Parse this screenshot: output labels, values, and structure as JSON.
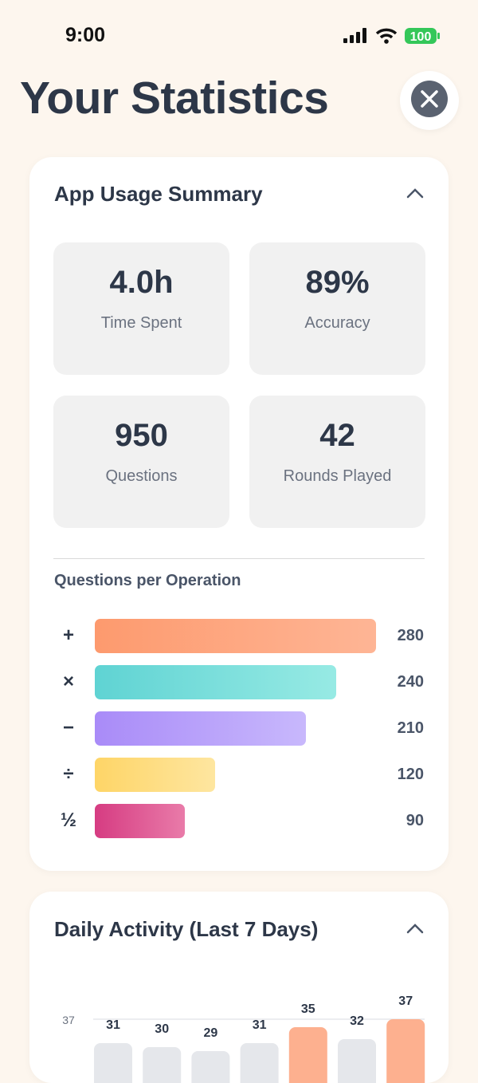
{
  "status_bar": {
    "time": "9:00",
    "battery": "100"
  },
  "header": {
    "title": "Your Statistics"
  },
  "summary": {
    "title": "App Usage Summary",
    "stats": [
      {
        "value": "4.0h",
        "label": "Time Spent"
      },
      {
        "value": "89%",
        "label": "Accuracy"
      },
      {
        "value": "950",
        "label": "Questions"
      },
      {
        "value": "42",
        "label": "Rounds Played"
      }
    ]
  },
  "operations": {
    "type": "bar",
    "title": "Questions per Operation",
    "categories": [
      "+",
      "×",
      "−",
      "÷",
      "½"
    ],
    "values": [
      280,
      240,
      210,
      120,
      90
    ],
    "colors": [
      [
        "#fd9a6e",
        "#feb595"
      ],
      [
        "#5fd3d3",
        "#97eae4"
      ],
      [
        "#a98bf8",
        "#c8b8fc"
      ],
      [
        "#fed567",
        "#fee6a0"
      ],
      [
        "#d63c82",
        "#e97ba9"
      ]
    ]
  },
  "daily": {
    "type": "bar",
    "title": "Daily Activity (Last 7 Days)",
    "values": [
      31,
      30,
      29,
      31,
      35,
      32,
      37
    ],
    "yticks": [
      37
    ],
    "colors": [
      "#e5e7eb",
      "#e5e7eb",
      "#e5e7eb",
      "#e5e7eb",
      "#fdb08f",
      "#e5e7eb",
      "#fdb08f"
    ]
  }
}
